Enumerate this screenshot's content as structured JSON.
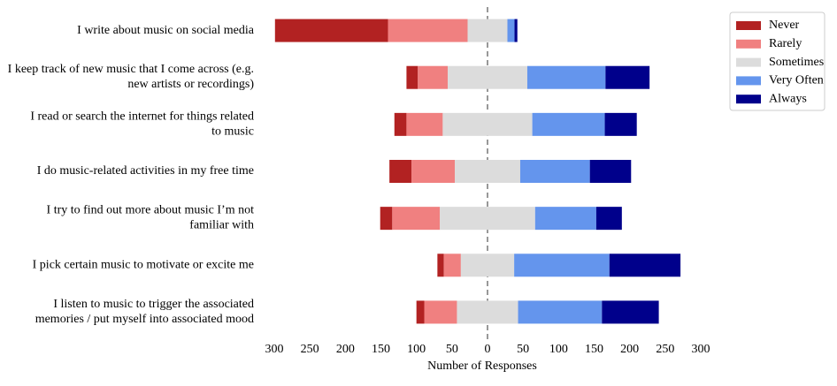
{
  "chart_data": {
    "type": "diverging-bar",
    "xlabel": "Number of Responses",
    "categories": [
      "I write about music on social media",
      "I keep track of new music that I come across (e.g.\nnew artists or recordings)",
      "I read or search the internet for things related\nto music",
      "I do music-related activities in my free time",
      "I try to find out more about music I’m not\nfamiliar with",
      "I pick certain music to motivate or excite me",
      "I listen to music to trigger the associated\nmemories / put myself into associated  mood"
    ],
    "series": [
      {
        "name": "Never",
        "color": "#b22222",
        "values": [
          159,
          16,
          17,
          31,
          17,
          9,
          11
        ]
      },
      {
        "name": "Rarely",
        "color": "#f08080",
        "values": [
          112,
          42,
          51,
          61,
          67,
          24,
          46
        ]
      },
      {
        "name": "Sometimes",
        "color": "#dcdcdc",
        "values": [
          56,
          112,
          126,
          92,
          134,
          75,
          86
        ]
      },
      {
        "name": "Very Often",
        "color": "#6495ed",
        "values": [
          10,
          110,
          102,
          98,
          86,
          134,
          118
        ]
      },
      {
        "name": "Always",
        "color": "#00008b",
        "values": [
          4,
          62,
          45,
          58,
          36,
          100,
          80
        ]
      }
    ],
    "xlim": [
      -300,
      300
    ],
    "xticks": [
      {
        "value": -300,
        "label": "300"
      },
      {
        "value": -250,
        "label": "250"
      },
      {
        "value": -200,
        "label": "200"
      },
      {
        "value": -150,
        "label": "150"
      },
      {
        "value": -100,
        "label": "100"
      },
      {
        "value": -50,
        "label": "50"
      },
      0,
      50,
      100,
      150,
      200,
      250,
      300
    ],
    "legend": "upper right"
  }
}
